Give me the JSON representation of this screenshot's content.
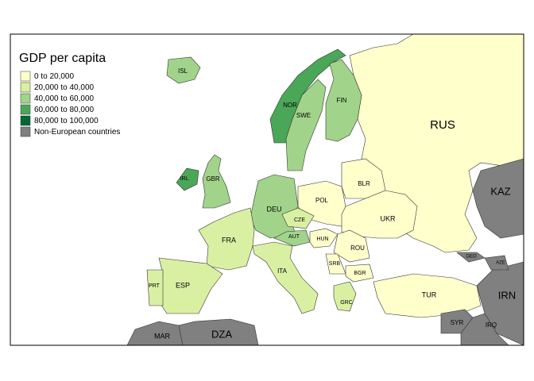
{
  "legend": {
    "title": "GDP per capita",
    "items": [
      {
        "label": "0 to 20,000",
        "color": "#ffffcc"
      },
      {
        "label": "20,000 to 40,000",
        "color": "#d9f0a3"
      },
      {
        "label": "40,000 to 60,000",
        "color": "#a1d48a"
      },
      {
        "label": "60,000 to 80,000",
        "color": "#4aa757"
      },
      {
        "label": "80,000 to 100,000",
        "color": "#006837"
      },
      {
        "label": "Non-European countries",
        "color": "#808080"
      }
    ]
  },
  "countries": [
    {
      "label": "RUS",
      "class": 0
    },
    {
      "label": "KAZ",
      "class": 5
    },
    {
      "label": "ISL",
      "class": 2
    },
    {
      "label": "NOR",
      "class": 3
    },
    {
      "label": "SWE",
      "class": 2
    },
    {
      "label": "FIN",
      "class": 2
    },
    {
      "label": "GBR",
      "class": 2
    },
    {
      "label": "IRL",
      "class": 3
    },
    {
      "label": "POL",
      "class": 0
    },
    {
      "label": "BLR",
      "class": 0
    },
    {
      "label": "DEU",
      "class": 2
    },
    {
      "label": "UKR",
      "class": 0
    },
    {
      "label": "CZE",
      "class": 1
    },
    {
      "label": "FRA",
      "class": 1
    },
    {
      "label": "AUT",
      "class": 2
    },
    {
      "label": "HUN",
      "class": 0
    },
    {
      "label": "ROU",
      "class": 0
    },
    {
      "label": "ITA",
      "class": 1
    },
    {
      "label": "SRB",
      "class": 0
    },
    {
      "label": "BGR",
      "class": 0
    },
    {
      "label": "ESP",
      "class": 1
    },
    {
      "label": "PRT",
      "class": 1
    },
    {
      "label": "TUR",
      "class": 0
    },
    {
      "label": "GRC",
      "class": 1
    },
    {
      "label": "MAR",
      "class": 5
    },
    {
      "label": "DZA",
      "class": 5
    },
    {
      "label": "IRN",
      "class": 5
    },
    {
      "label": "SYR",
      "class": 5
    },
    {
      "label": "IRQ",
      "class": 5
    },
    {
      "label": "GEO",
      "class": 5
    },
    {
      "label": "AZE",
      "class": 5
    }
  ]
}
